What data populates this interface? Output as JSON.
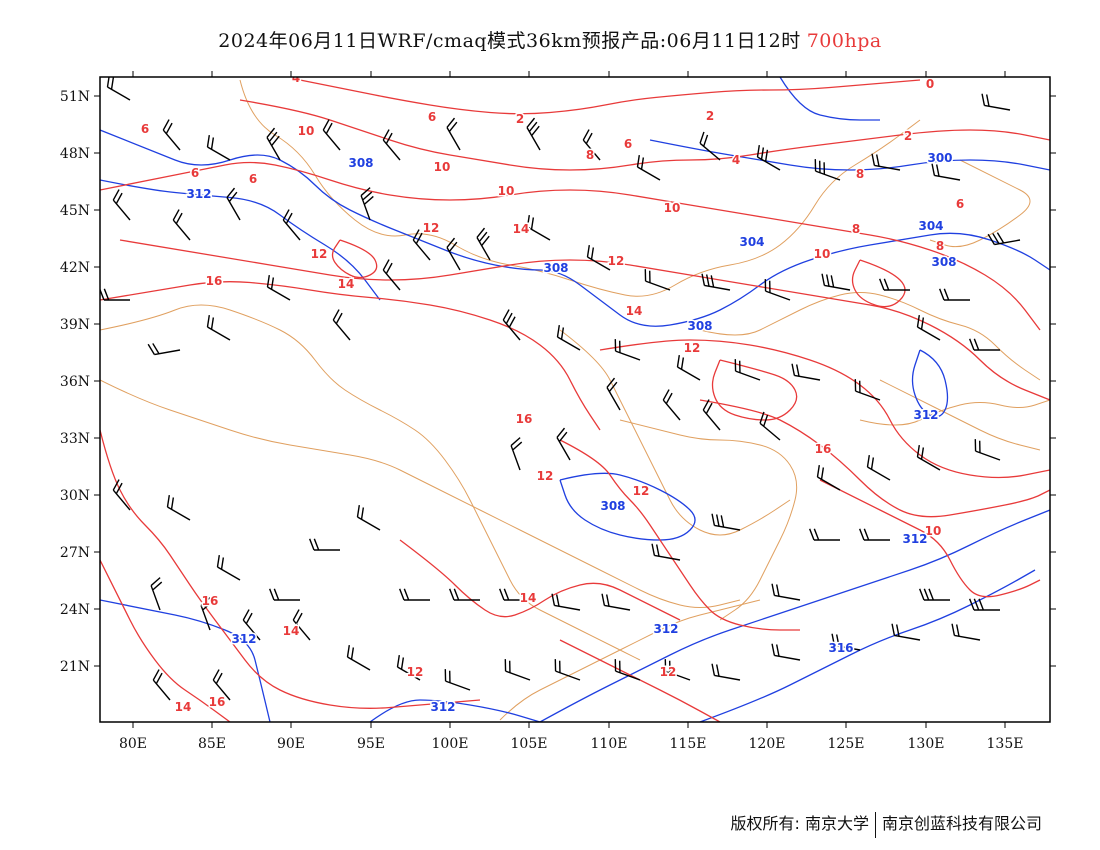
{
  "title": {
    "main": "2024年06月11日WRF/cmaq模式36km预报产品:06月11日12时",
    "level": "700hpa"
  },
  "axes": {
    "lon_labels": [
      "80E",
      "85E",
      "90E",
      "95E",
      "100E",
      "105E",
      "110E",
      "115E",
      "120E",
      "125E",
      "130E",
      "135E"
    ],
    "lat_labels": [
      "21N",
      "24N",
      "27N",
      "30N",
      "33N",
      "36N",
      "39N",
      "42N",
      "45N",
      "48N",
      "51N"
    ]
  },
  "colors": {
    "temperature_contour": "#e83a3a",
    "geopotential_contour": "#2040e0",
    "boundary": "#e0a060",
    "wind_barb": "#000000",
    "frame": "#000000"
  },
  "temperature_labels": [
    "0",
    "2",
    "2",
    "2",
    "4",
    "4",
    "6",
    "6",
    "6",
    "6",
    "6",
    "6",
    "8",
    "8",
    "8",
    "8",
    "10",
    "10",
    "10",
    "10",
    "10",
    "10",
    "12",
    "12",
    "12",
    "12",
    "12",
    "12",
    "12",
    "12",
    "14",
    "14",
    "14",
    "14",
    "14",
    "14",
    "16",
    "16",
    "16",
    "16",
    "16"
  ],
  "height_labels": [
    "300",
    "304",
    "304",
    "308",
    "308",
    "308",
    "308",
    "308",
    "312",
    "312",
    "312",
    "312",
    "312",
    "312",
    "316"
  ],
  "footer": {
    "left": "版权所有: 南京大学",
    "right": "南京创蓝科技有限公司"
  }
}
